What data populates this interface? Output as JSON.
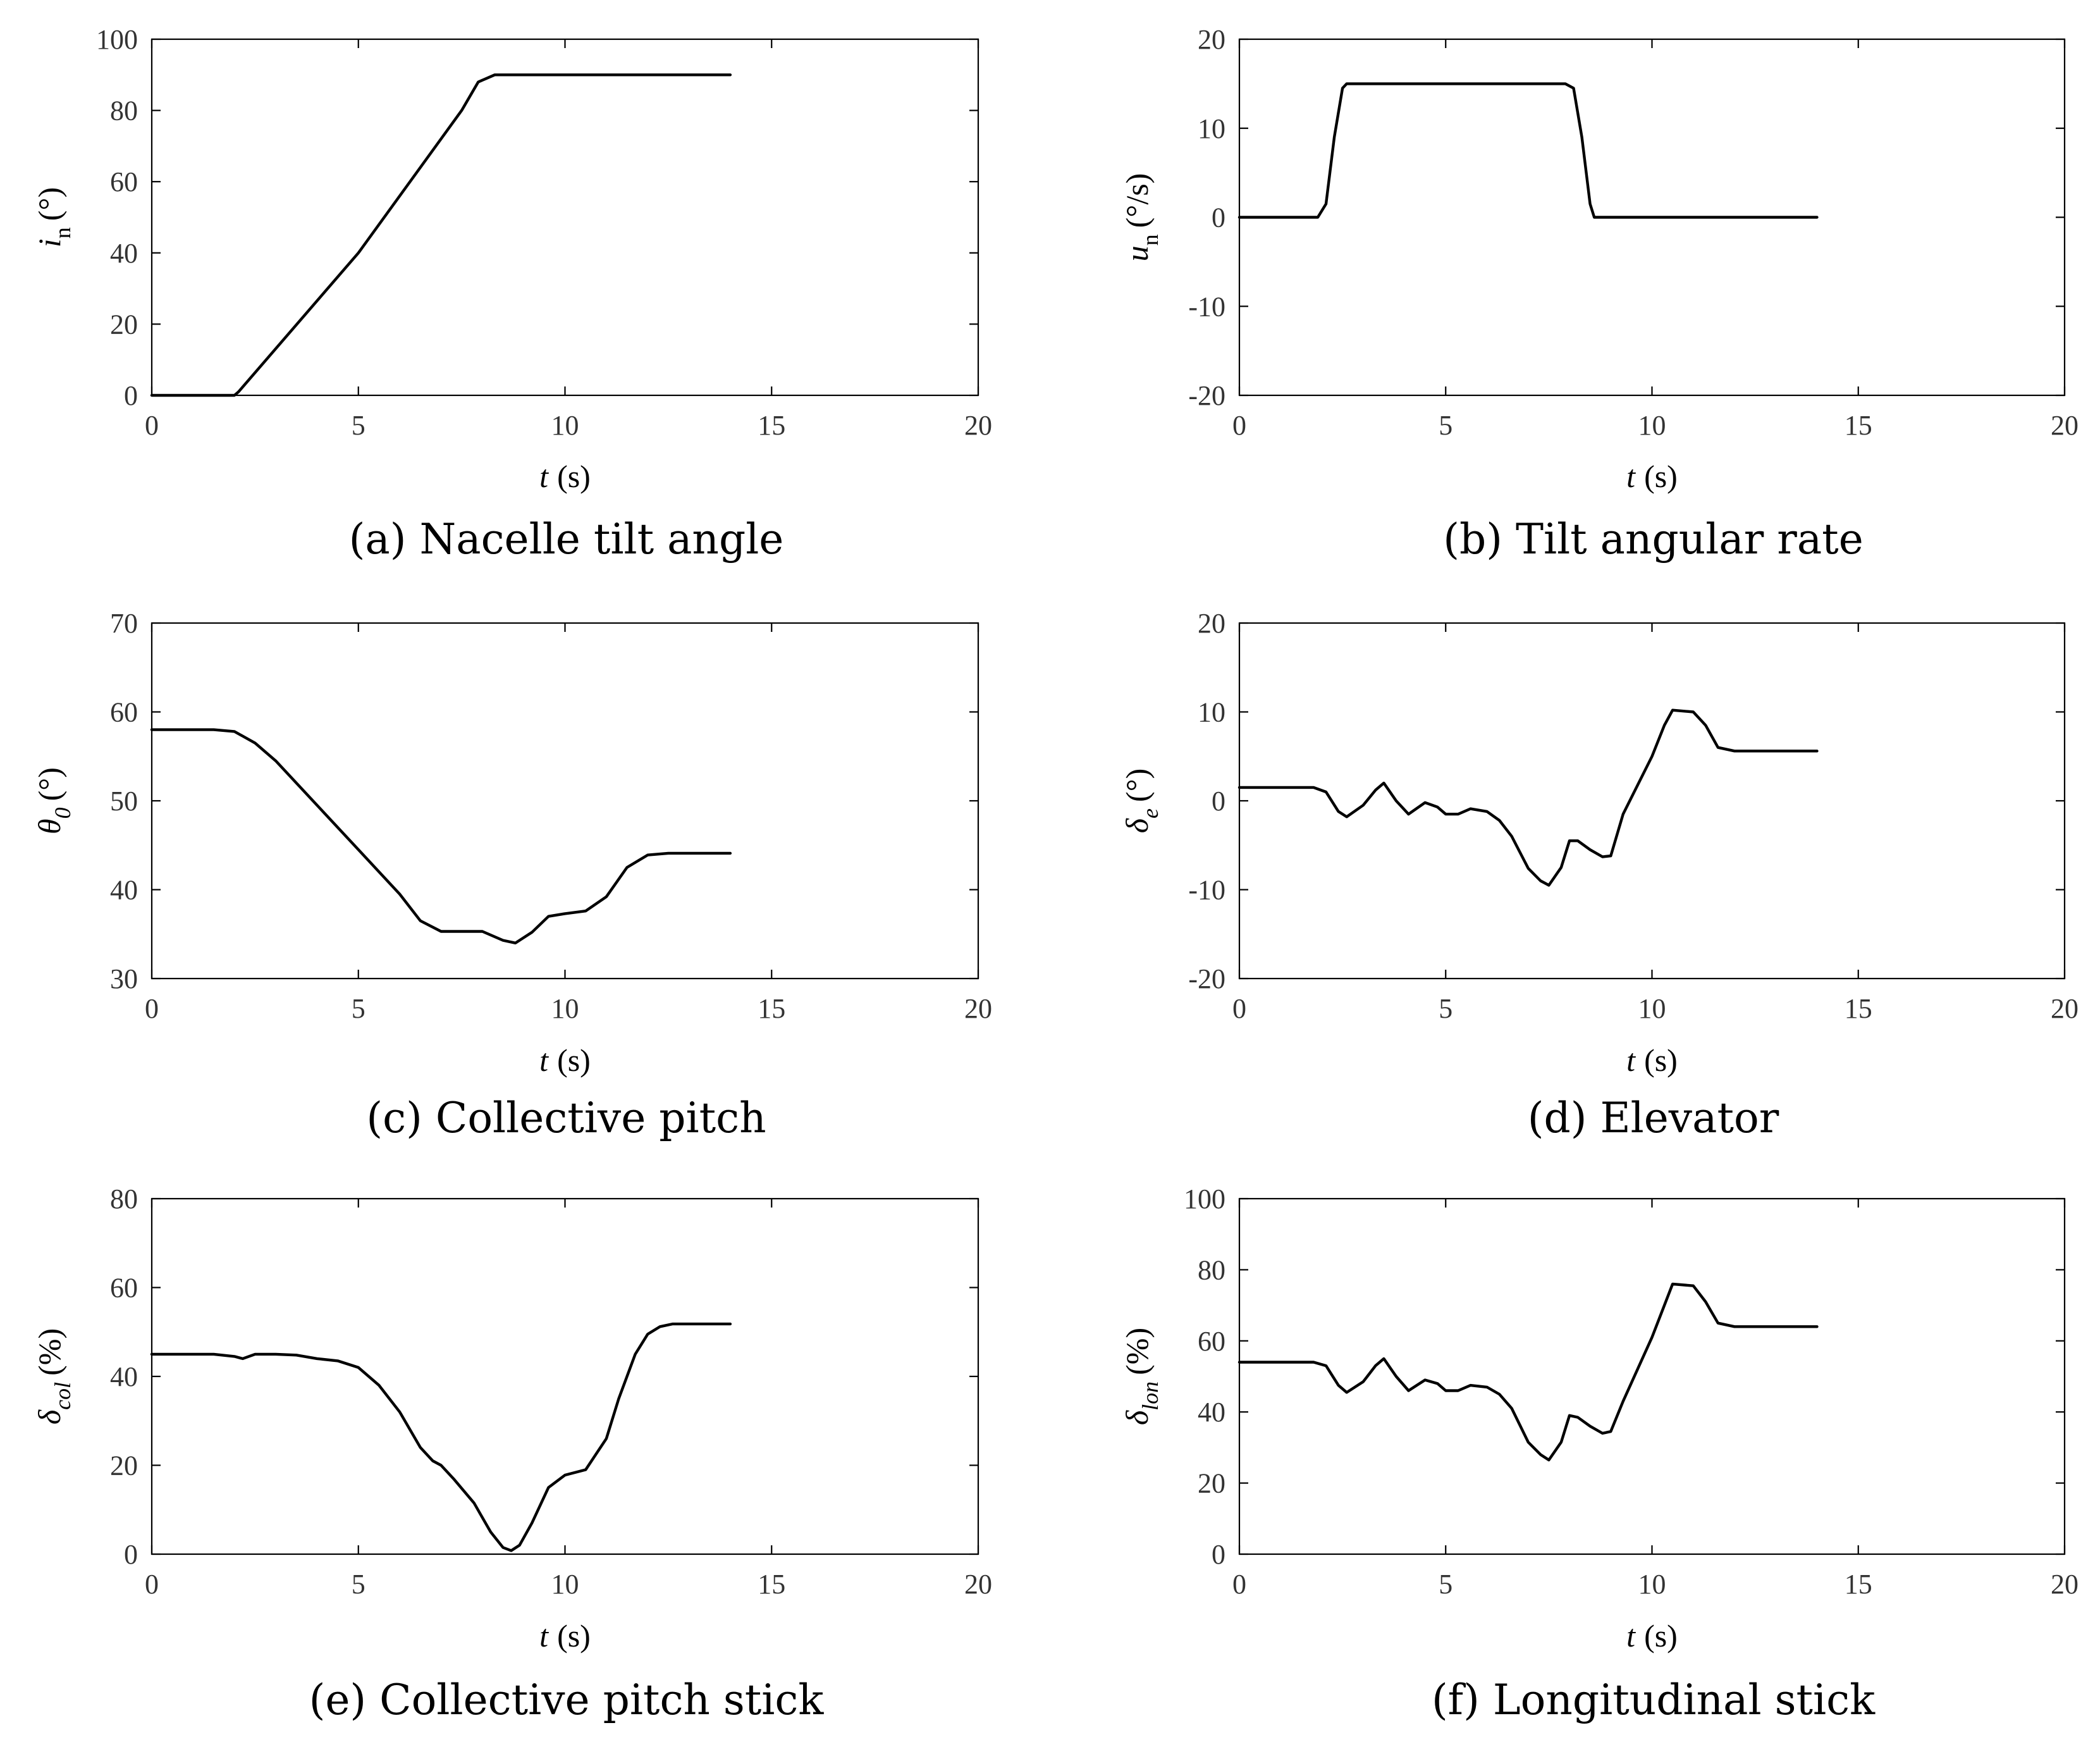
{
  "figure": {
    "background": "#ffffff",
    "line_color": "#000000"
  },
  "chart_data": [
    {
      "id": "a",
      "type": "line",
      "caption": "(a) Nacelle tilt angle",
      "ylabel": {
        "symbol": "i",
        "subscript": "n",
        "unit": "(°)"
      },
      "xlabel": {
        "symbol": "t",
        "unit": "(s)"
      },
      "xlim": [
        0,
        20
      ],
      "ylim": [
        0,
        100
      ],
      "xticks": [
        0,
        5,
        10,
        15,
        20
      ],
      "yticks": [
        0,
        20,
        40,
        60,
        80,
        100
      ],
      "series": [
        {
          "name": "i_n",
          "x": [
            0,
            2.0,
            2.1,
            5,
            7.5,
            7.9,
            8.3,
            9,
            14
          ],
          "y": [
            0,
            0,
            1,
            40,
            80,
            88,
            90,
            90,
            90
          ]
        }
      ]
    },
    {
      "id": "b",
      "type": "line",
      "caption": "(b) Tilt angular rate",
      "ylabel": {
        "symbol": "u",
        "subscript": "n",
        "unit": "(°/s)"
      },
      "xlabel": {
        "symbol": "t",
        "unit": "(s)"
      },
      "xlim": [
        0,
        20
      ],
      "ylim": [
        -20,
        20
      ],
      "xticks": [
        0,
        5,
        10,
        15,
        20
      ],
      "yticks": [
        -20,
        -10,
        0,
        10,
        20
      ],
      "series": [
        {
          "name": "u_n",
          "x": [
            0,
            1.9,
            2.1,
            2.3,
            2.5,
            2.6,
            7.9,
            8.1,
            8.3,
            8.5,
            8.6,
            14
          ],
          "y": [
            0,
            0,
            1.5,
            9,
            14.5,
            15,
            15,
            14.5,
            9,
            1.5,
            0,
            0
          ]
        }
      ]
    },
    {
      "id": "c",
      "type": "line",
      "caption": "(c) Collective pitch",
      "ylabel": {
        "symbol": "θ",
        "subscript": "0",
        "unit": "(°)"
      },
      "xlabel": {
        "symbol": "t",
        "unit": "(s)"
      },
      "xlim": [
        0,
        20
      ],
      "ylim": [
        30,
        70
      ],
      "xticks": [
        0,
        5,
        10,
        15,
        20
      ],
      "yticks": [
        30,
        40,
        50,
        60,
        70
      ],
      "series": [
        {
          "name": "theta_0",
          "x": [
            0,
            1.5,
            2,
            2.5,
            3,
            4,
            5,
            6,
            6.5,
            7,
            7.5,
            8,
            8.5,
            8.8,
            9.2,
            9.6,
            10,
            10.5,
            11,
            11.5,
            12,
            12.5,
            14
          ],
          "y": [
            58,
            58,
            57.8,
            56.5,
            54.5,
            49.5,
            44.5,
            39.5,
            36.5,
            35.3,
            35.3,
            35.3,
            34.3,
            34,
            35.2,
            37,
            37.3,
            37.6,
            39.2,
            42.5,
            43.9,
            44.1,
            44.1
          ]
        }
      ]
    },
    {
      "id": "d",
      "type": "line",
      "caption": "(d) Elevator",
      "ylabel": {
        "symbol": "δ",
        "subscript": "e",
        "unit": "(°)"
      },
      "xlabel": {
        "symbol": "t",
        "unit": "(s)"
      },
      "xlim": [
        0,
        20
      ],
      "ylim": [
        -20,
        20
      ],
      "xticks": [
        0,
        5,
        10,
        15,
        20
      ],
      "yticks": [
        -20,
        -10,
        0,
        10,
        20
      ],
      "series": [
        {
          "name": "delta_e",
          "x": [
            0,
            1.8,
            2.1,
            2.4,
            2.6,
            3.0,
            3.3,
            3.5,
            3.8,
            4.1,
            4.5,
            4.8,
            5.0,
            5.3,
            5.6,
            6.0,
            6.3,
            6.6,
            7.0,
            7.3,
            7.5,
            7.8,
            8.0,
            8.2,
            8.5,
            8.8,
            9.0,
            9.3,
            10.0,
            10.3,
            10.5,
            11.0,
            11.3,
            11.6,
            12.0,
            14
          ],
          "y": [
            1.5,
            1.5,
            1,
            -1.2,
            -1.8,
            -0.5,
            1.2,
            2,
            0,
            -1.5,
            -0.2,
            -0.7,
            -1.5,
            -1.5,
            -0.9,
            -1.2,
            -2.2,
            -4,
            -7.6,
            -9,
            -9.5,
            -7.5,
            -4.5,
            -4.5,
            -5.5,
            -6.3,
            -6.2,
            -1.5,
            5,
            8.5,
            10.2,
            10,
            8.5,
            6,
            5.6,
            5.6
          ]
        }
      ]
    },
    {
      "id": "e",
      "type": "line",
      "caption": "(e) Collective pitch stick",
      "ylabel": {
        "symbol": "δ",
        "subscript": "col",
        "unit": "(%)"
      },
      "xlabel": {
        "symbol": "t",
        "unit": "(s)"
      },
      "xlim": [
        0,
        20
      ],
      "ylim": [
        0,
        80
      ],
      "xticks": [
        0,
        5,
        10,
        15,
        20
      ],
      "yticks": [
        0,
        20,
        40,
        60,
        80
      ],
      "series": [
        {
          "name": "delta_col",
          "x": [
            0,
            1.5,
            2.0,
            2.2,
            2.5,
            3.0,
            3.5,
            4.0,
            4.5,
            5.0,
            5.5,
            6.0,
            6.5,
            6.8,
            7.0,
            7.3,
            7.8,
            8.2,
            8.5,
            8.7,
            8.9,
            9.2,
            9.6,
            10.0,
            10.5,
            11.0,
            11.3,
            11.7,
            12.0,
            12.3,
            12.6,
            14
          ],
          "y": [
            45,
            45,
            44.5,
            44,
            45,
            45,
            44.8,
            44,
            43.5,
            42,
            38,
            32,
            24,
            21,
            20,
            17,
            11.5,
            5,
            1.5,
            0.8,
            2,
            7,
            15,
            17.8,
            19,
            26,
            35,
            45,
            49.5,
            51.2,
            51.8,
            51.8
          ]
        }
      ]
    },
    {
      "id": "f",
      "type": "line",
      "caption": "(f) Longitudinal stick",
      "ylabel": {
        "symbol": "δ",
        "subscript": "lon",
        "unit": "(%)"
      },
      "xlabel": {
        "symbol": "t",
        "unit": "(s)"
      },
      "xlim": [
        0,
        20
      ],
      "ylim": [
        0,
        100
      ],
      "xticks": [
        0,
        5,
        10,
        15,
        20
      ],
      "yticks": [
        0,
        20,
        40,
        60,
        80,
        100
      ],
      "series": [
        {
          "name": "delta_lon",
          "x": [
            0,
            1.8,
            2.1,
            2.4,
            2.6,
            3.0,
            3.3,
            3.5,
            3.8,
            4.1,
            4.5,
            4.8,
            5.0,
            5.3,
            5.6,
            6.0,
            6.3,
            6.6,
            7.0,
            7.3,
            7.5,
            7.8,
            8.0,
            8.2,
            8.5,
            8.8,
            9.0,
            9.3,
            10.0,
            10.3,
            10.5,
            11.0,
            11.3,
            11.6,
            12.0,
            14
          ],
          "y": [
            54,
            54,
            53,
            47.5,
            45.5,
            48.5,
            53,
            55,
            50,
            46,
            49,
            48,
            46,
            46,
            47.5,
            47,
            45,
            41,
            31.5,
            28,
            26.5,
            31.5,
            39,
            38.5,
            36,
            34,
            34.5,
            43,
            61,
            70,
            76,
            75.5,
            71,
            65,
            64,
            64
          ]
        }
      ]
    }
  ]
}
